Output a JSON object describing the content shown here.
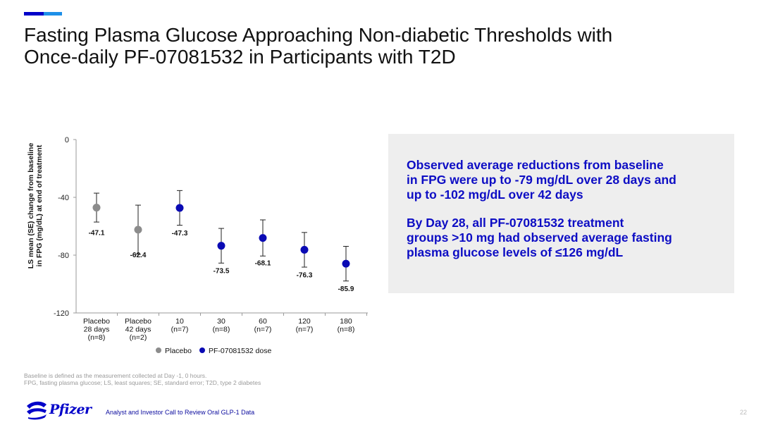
{
  "slide": {
    "title_line1": "Fasting Plasma Glucose Approaching Non-diabetic Thresholds with",
    "title_line2": "Once-daily PF-07081532 in Participants with T2D",
    "accent_colors": [
      "#0000c9",
      "#1e90e8"
    ]
  },
  "callout": {
    "paragraph1": "Observed average reductions from baseline\nin FPG were up to -79 mg/dL over 28 days and\nup to -102 mg/dL over 42 days",
    "paragraph2": "By Day 28, all PF-07081532 treatment\ngroups >10 mg had observed average fasting\nplasma glucose levels of ≤126 mg/dL",
    "text_color": "#0d0dc4"
  },
  "chart_data": {
    "type": "scatter",
    "ylabel_line1": "LS mean (SE) change from baseline",
    "ylabel_line2": "in FPG (mg/dL) at end of treatment",
    "ylim": [
      -120,
      0
    ],
    "yticks": [
      0,
      -40,
      -80,
      -120
    ],
    "categories": [
      [
        "Placebo",
        "28 days",
        "(n=8)"
      ],
      [
        "Placebo",
        "42 days",
        "(n=2)"
      ],
      [
        "10",
        "(n=7)"
      ],
      [
        "30",
        "(n=8)"
      ],
      [
        "60",
        "(n=7)"
      ],
      [
        "120",
        "(n=7)"
      ],
      [
        "180",
        "(n=8)"
      ]
    ],
    "points": [
      {
        "value": -47.1,
        "label": "-47.1",
        "se": 10,
        "group": "placebo"
      },
      {
        "value": -62.4,
        "label": "-62.4",
        "se": 17,
        "group": "placebo"
      },
      {
        "value": -47.3,
        "label": "-47.3",
        "se": 12,
        "group": "dose"
      },
      {
        "value": -73.5,
        "label": "-73.5",
        "se": 12,
        "group": "dose"
      },
      {
        "value": -68.1,
        "label": "-68.1",
        "se": 12.5,
        "group": "dose"
      },
      {
        "value": -76.3,
        "label": "-76.3",
        "se": 12,
        "group": "dose"
      },
      {
        "value": -85.9,
        "label": "-85.9",
        "se": 12,
        "group": "dose"
      }
    ],
    "legend": [
      {
        "key": "placebo",
        "name": "Placebo",
        "color": "#8c8c8c"
      },
      {
        "key": "dose",
        "name": "PF-07081532 dose",
        "color": "#0a0ab4"
      }
    ]
  },
  "footnotes": {
    "line1": "Baseline is defined as the measurement collected at Day -1, 0 hours.",
    "line2": "FPG, fasting plasma glucose; LS, least squares; SE, standard error; T2D, type 2 diabetes"
  },
  "footer": {
    "logo_text": "Pfizer",
    "caption": "Analyst and Investor Call to Review Oral GLP-1 Data",
    "page_number": "22"
  }
}
